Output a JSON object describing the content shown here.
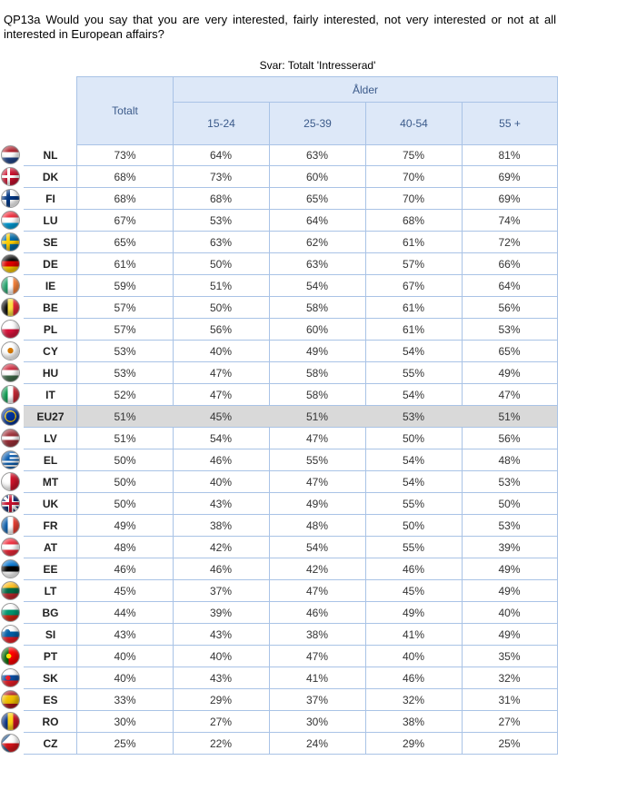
{
  "question": "QP13a Would you say that you are very interested, fairly interested, not very interested or not at all interested in European affairs?",
  "subtitle": "Svar: Totalt 'Intresserad'",
  "header": {
    "total": "Totalt",
    "age_group": "Ålder",
    "age_bands": [
      "15-24",
      "25-39",
      "40-54",
      "55 +"
    ]
  },
  "rows": [
    {
      "code": "NL",
      "flag_icon": "flag-netherlands-icon",
      "values": [
        "73%",
        "64%",
        "63%",
        "75%",
        "81%"
      ]
    },
    {
      "code": "DK",
      "flag_icon": "flag-denmark-icon",
      "values": [
        "68%",
        "73%",
        "60%",
        "70%",
        "69%"
      ]
    },
    {
      "code": "FI",
      "flag_icon": "flag-finland-icon",
      "values": [
        "68%",
        "68%",
        "65%",
        "70%",
        "69%"
      ]
    },
    {
      "code": "LU",
      "flag_icon": "flag-luxembourg-icon",
      "values": [
        "67%",
        "53%",
        "64%",
        "68%",
        "74%"
      ]
    },
    {
      "code": "SE",
      "flag_icon": "flag-sweden-icon",
      "values": [
        "65%",
        "63%",
        "62%",
        "61%",
        "72%"
      ]
    },
    {
      "code": "DE",
      "flag_icon": "flag-germany-icon",
      "values": [
        "61%",
        "50%",
        "63%",
        "57%",
        "66%"
      ]
    },
    {
      "code": "IE",
      "flag_icon": "flag-ireland-icon",
      "values": [
        "59%",
        "51%",
        "54%",
        "67%",
        "64%"
      ]
    },
    {
      "code": "BE",
      "flag_icon": "flag-belgium-icon",
      "values": [
        "57%",
        "50%",
        "58%",
        "61%",
        "56%"
      ]
    },
    {
      "code": "PL",
      "flag_icon": "flag-poland-icon",
      "values": [
        "57%",
        "56%",
        "60%",
        "61%",
        "53%"
      ]
    },
    {
      "code": "CY",
      "flag_icon": "flag-cyprus-icon",
      "values": [
        "53%",
        "40%",
        "49%",
        "54%",
        "65%"
      ]
    },
    {
      "code": "HU",
      "flag_icon": "flag-hungary-icon",
      "values": [
        "53%",
        "47%",
        "58%",
        "55%",
        "49%"
      ]
    },
    {
      "code": "IT",
      "flag_icon": "flag-italy-icon",
      "values": [
        "52%",
        "47%",
        "58%",
        "54%",
        "47%"
      ]
    },
    {
      "code": "EU27",
      "flag_icon": "flag-eu-icon",
      "values": [
        "51%",
        "45%",
        "51%",
        "53%",
        "51%"
      ],
      "highlight": true
    },
    {
      "code": "LV",
      "flag_icon": "flag-latvia-icon",
      "values": [
        "51%",
        "54%",
        "47%",
        "50%",
        "56%"
      ]
    },
    {
      "code": "EL",
      "flag_icon": "flag-greece-icon",
      "values": [
        "50%",
        "46%",
        "55%",
        "54%",
        "48%"
      ]
    },
    {
      "code": "MT",
      "flag_icon": "flag-malta-icon",
      "values": [
        "50%",
        "40%",
        "47%",
        "54%",
        "53%"
      ]
    },
    {
      "code": "UK",
      "flag_icon": "flag-uk-icon",
      "values": [
        "50%",
        "43%",
        "49%",
        "55%",
        "50%"
      ]
    },
    {
      "code": "FR",
      "flag_icon": "flag-france-icon",
      "values": [
        "49%",
        "38%",
        "48%",
        "50%",
        "53%"
      ]
    },
    {
      "code": "AT",
      "flag_icon": "flag-austria-icon",
      "values": [
        "48%",
        "42%",
        "54%",
        "55%",
        "39%"
      ]
    },
    {
      "code": "EE",
      "flag_icon": "flag-estonia-icon",
      "values": [
        "46%",
        "46%",
        "42%",
        "46%",
        "49%"
      ]
    },
    {
      "code": "LT",
      "flag_icon": "flag-lithuania-icon",
      "values": [
        "45%",
        "37%",
        "47%",
        "45%",
        "49%"
      ]
    },
    {
      "code": "BG",
      "flag_icon": "flag-bulgaria-icon",
      "values": [
        "44%",
        "39%",
        "46%",
        "49%",
        "40%"
      ]
    },
    {
      "code": "SI",
      "flag_icon": "flag-slovenia-icon",
      "values": [
        "43%",
        "43%",
        "38%",
        "41%",
        "49%"
      ]
    },
    {
      "code": "PT",
      "flag_icon": "flag-portugal-icon",
      "values": [
        "40%",
        "40%",
        "47%",
        "40%",
        "35%"
      ]
    },
    {
      "code": "SK",
      "flag_icon": "flag-slovakia-icon",
      "values": [
        "40%",
        "43%",
        "41%",
        "46%",
        "32%"
      ]
    },
    {
      "code": "ES",
      "flag_icon": "flag-spain-icon",
      "values": [
        "33%",
        "29%",
        "37%",
        "32%",
        "31%"
      ]
    },
    {
      "code": "RO",
      "flag_icon": "flag-romania-icon",
      "values": [
        "30%",
        "27%",
        "30%",
        "38%",
        "27%"
      ]
    },
    {
      "code": "CZ",
      "flag_icon": "flag-czech-icon",
      "values": [
        "25%",
        "22%",
        "24%",
        "29%",
        "25%"
      ]
    }
  ]
}
